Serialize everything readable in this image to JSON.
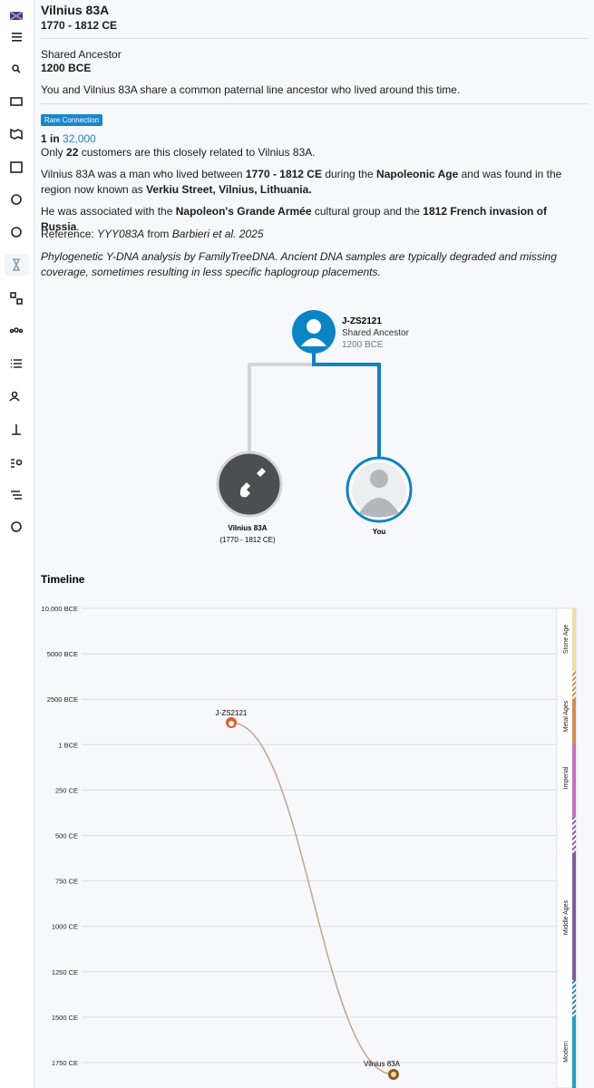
{
  "header": {
    "title": "Vilnius 83A",
    "dates": "1770 - 1812 CE"
  },
  "ancestor": {
    "label": "Shared Ancestor",
    "date": "1200 BCE",
    "description": "You and Vilnius 83A share a common paternal line ancestor who lived around this time."
  },
  "rarity": {
    "badge": "Rare Connection",
    "prefix": "1 in",
    "count": "32,000",
    "customers": [
      "Only ",
      "22",
      " customers are this closely related to Vilnius 83A."
    ]
  },
  "bio": [
    [
      "Vilnius 83A was a man who lived between ",
      "1770 - 1812 CE",
      " during the ",
      "Napoleonic Age",
      " and was found in the region now known as ",
      "Verkiu Street, Vilnius, Lithuania."
    ],
    [
      "He was associated with the ",
      "Napoleon's Grande Armée",
      " cultural group and the ",
      "1812 French invasion of Russia",
      "."
    ],
    [
      "Reference: ",
      "YYY083A",
      " from ",
      "Barbieri et al. 2025"
    ],
    [
      "Phylogenetic Y-DNA analysis by FamilyTreeDNA. Ancient DNA samples are typically degraded and missing coverage, sometimes resulting in less specific haplogroup placements."
    ]
  ],
  "tree": {
    "ancestor_name": "J-ZS2121",
    "ancestor_label": "Shared Ancestor",
    "ancestor_date": "1200 BCE",
    "left_name": "Vilnius 83A",
    "left_dates": "(1770 - 1812 CE)",
    "right_name": "You"
  },
  "timeline": {
    "title": "Timeline",
    "ticks": [
      "10,000 BCE",
      "5000 BCE",
      "2500 BCE",
      "1 BCE",
      "250 CE",
      "500 CE",
      "750 CE",
      "1000 CE",
      "1250 CE",
      "1500 CE",
      "1750 CE"
    ],
    "eras": [
      "Stone Age",
      "Metal Ages",
      "Imperial",
      "Middle Ages",
      "Modern"
    ],
    "points": [
      "J-ZS2121",
      "Vilnius 83A"
    ]
  }
}
